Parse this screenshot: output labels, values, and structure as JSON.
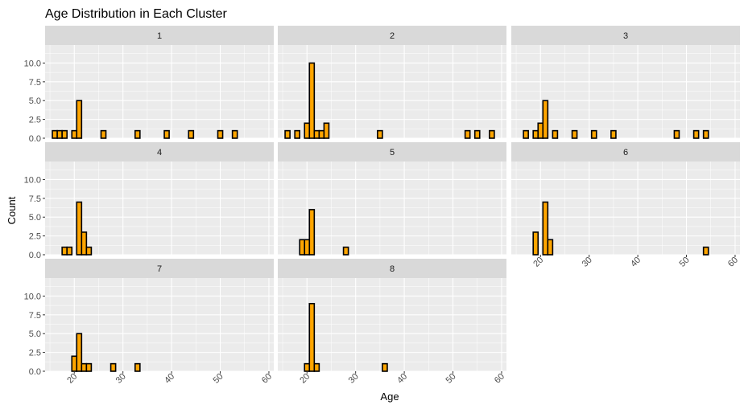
{
  "chart_data": {
    "type": "bar",
    "subtype": "histogram-facets",
    "title": "Age Distribution in Each Cluster",
    "xlabel": "Age",
    "ylabel": "Count",
    "xlim": [
      14,
      61
    ],
    "ylim": [
      0,
      12.4
    ],
    "bin_width": 1,
    "x_ticks": [
      20,
      30,
      40,
      50,
      60
    ],
    "x_tick_labels": [
      "20",
      "30",
      "40",
      "50",
      "60"
    ],
    "y_ticks": [
      0,
      2.5,
      5,
      7.5,
      10
    ],
    "y_tick_labels": [
      "0.0",
      "2.5",
      "5.0",
      "7.5",
      "10.0"
    ],
    "bar_fill": "#FFA500",
    "bar_outline": "#000000",
    "panel_background": "#EBEBEB",
    "strip_background": "#D9D9D9",
    "grid_color": "#FFFFFF",
    "facet_columns": 3,
    "facets": [
      {
        "label": "1",
        "bins": [
          {
            "x": 16,
            "count": 1
          },
          {
            "x": 17,
            "count": 1
          },
          {
            "x": 18,
            "count": 1
          },
          {
            "x": 20,
            "count": 1
          },
          {
            "x": 21,
            "count": 5
          },
          {
            "x": 26,
            "count": 1
          },
          {
            "x": 33,
            "count": 1
          },
          {
            "x": 39,
            "count": 1
          },
          {
            "x": 44,
            "count": 1
          },
          {
            "x": 50,
            "count": 1
          },
          {
            "x": 53,
            "count": 1
          }
        ]
      },
      {
        "label": "2",
        "bins": [
          {
            "x": 16,
            "count": 1
          },
          {
            "x": 18,
            "count": 1
          },
          {
            "x": 20,
            "count": 2
          },
          {
            "x": 21,
            "count": 10
          },
          {
            "x": 22,
            "count": 1
          },
          {
            "x": 23,
            "count": 1
          },
          {
            "x": 24,
            "count": 2
          },
          {
            "x": 35,
            "count": 1
          },
          {
            "x": 53,
            "count": 1
          },
          {
            "x": 55,
            "count": 1
          },
          {
            "x": 58,
            "count": 1
          }
        ]
      },
      {
        "label": "3",
        "bins": [
          {
            "x": 17,
            "count": 1
          },
          {
            "x": 19,
            "count": 1
          },
          {
            "x": 20,
            "count": 2
          },
          {
            "x": 21,
            "count": 5
          },
          {
            "x": 23,
            "count": 1
          },
          {
            "x": 27,
            "count": 1
          },
          {
            "x": 31,
            "count": 1
          },
          {
            "x": 35,
            "count": 1
          },
          {
            "x": 48,
            "count": 1
          },
          {
            "x": 52,
            "count": 1
          },
          {
            "x": 54,
            "count": 1
          }
        ]
      },
      {
        "label": "4",
        "bins": [
          {
            "x": 18,
            "count": 1
          },
          {
            "x": 19,
            "count": 1
          },
          {
            "x": 21,
            "count": 7
          },
          {
            "x": 22,
            "count": 3
          },
          {
            "x": 23,
            "count": 1
          }
        ]
      },
      {
        "label": "5",
        "bins": [
          {
            "x": 19,
            "count": 2
          },
          {
            "x": 20,
            "count": 2
          },
          {
            "x": 21,
            "count": 6
          },
          {
            "x": 28,
            "count": 1
          }
        ]
      },
      {
        "label": "6",
        "bins": [
          {
            "x": 19,
            "count": 3
          },
          {
            "x": 21,
            "count": 7
          },
          {
            "x": 22,
            "count": 2
          },
          {
            "x": 54,
            "count": 1
          }
        ]
      },
      {
        "label": "7",
        "bins": [
          {
            "x": 20,
            "count": 2
          },
          {
            "x": 21,
            "count": 5
          },
          {
            "x": 22,
            "count": 1
          },
          {
            "x": 23,
            "count": 1
          },
          {
            "x": 28,
            "count": 1
          },
          {
            "x": 33,
            "count": 1
          }
        ]
      },
      {
        "label": "8",
        "bins": [
          {
            "x": 20,
            "count": 1
          },
          {
            "x": 21,
            "count": 9
          },
          {
            "x": 22,
            "count": 1
          },
          {
            "x": 36,
            "count": 1
          }
        ]
      }
    ]
  }
}
